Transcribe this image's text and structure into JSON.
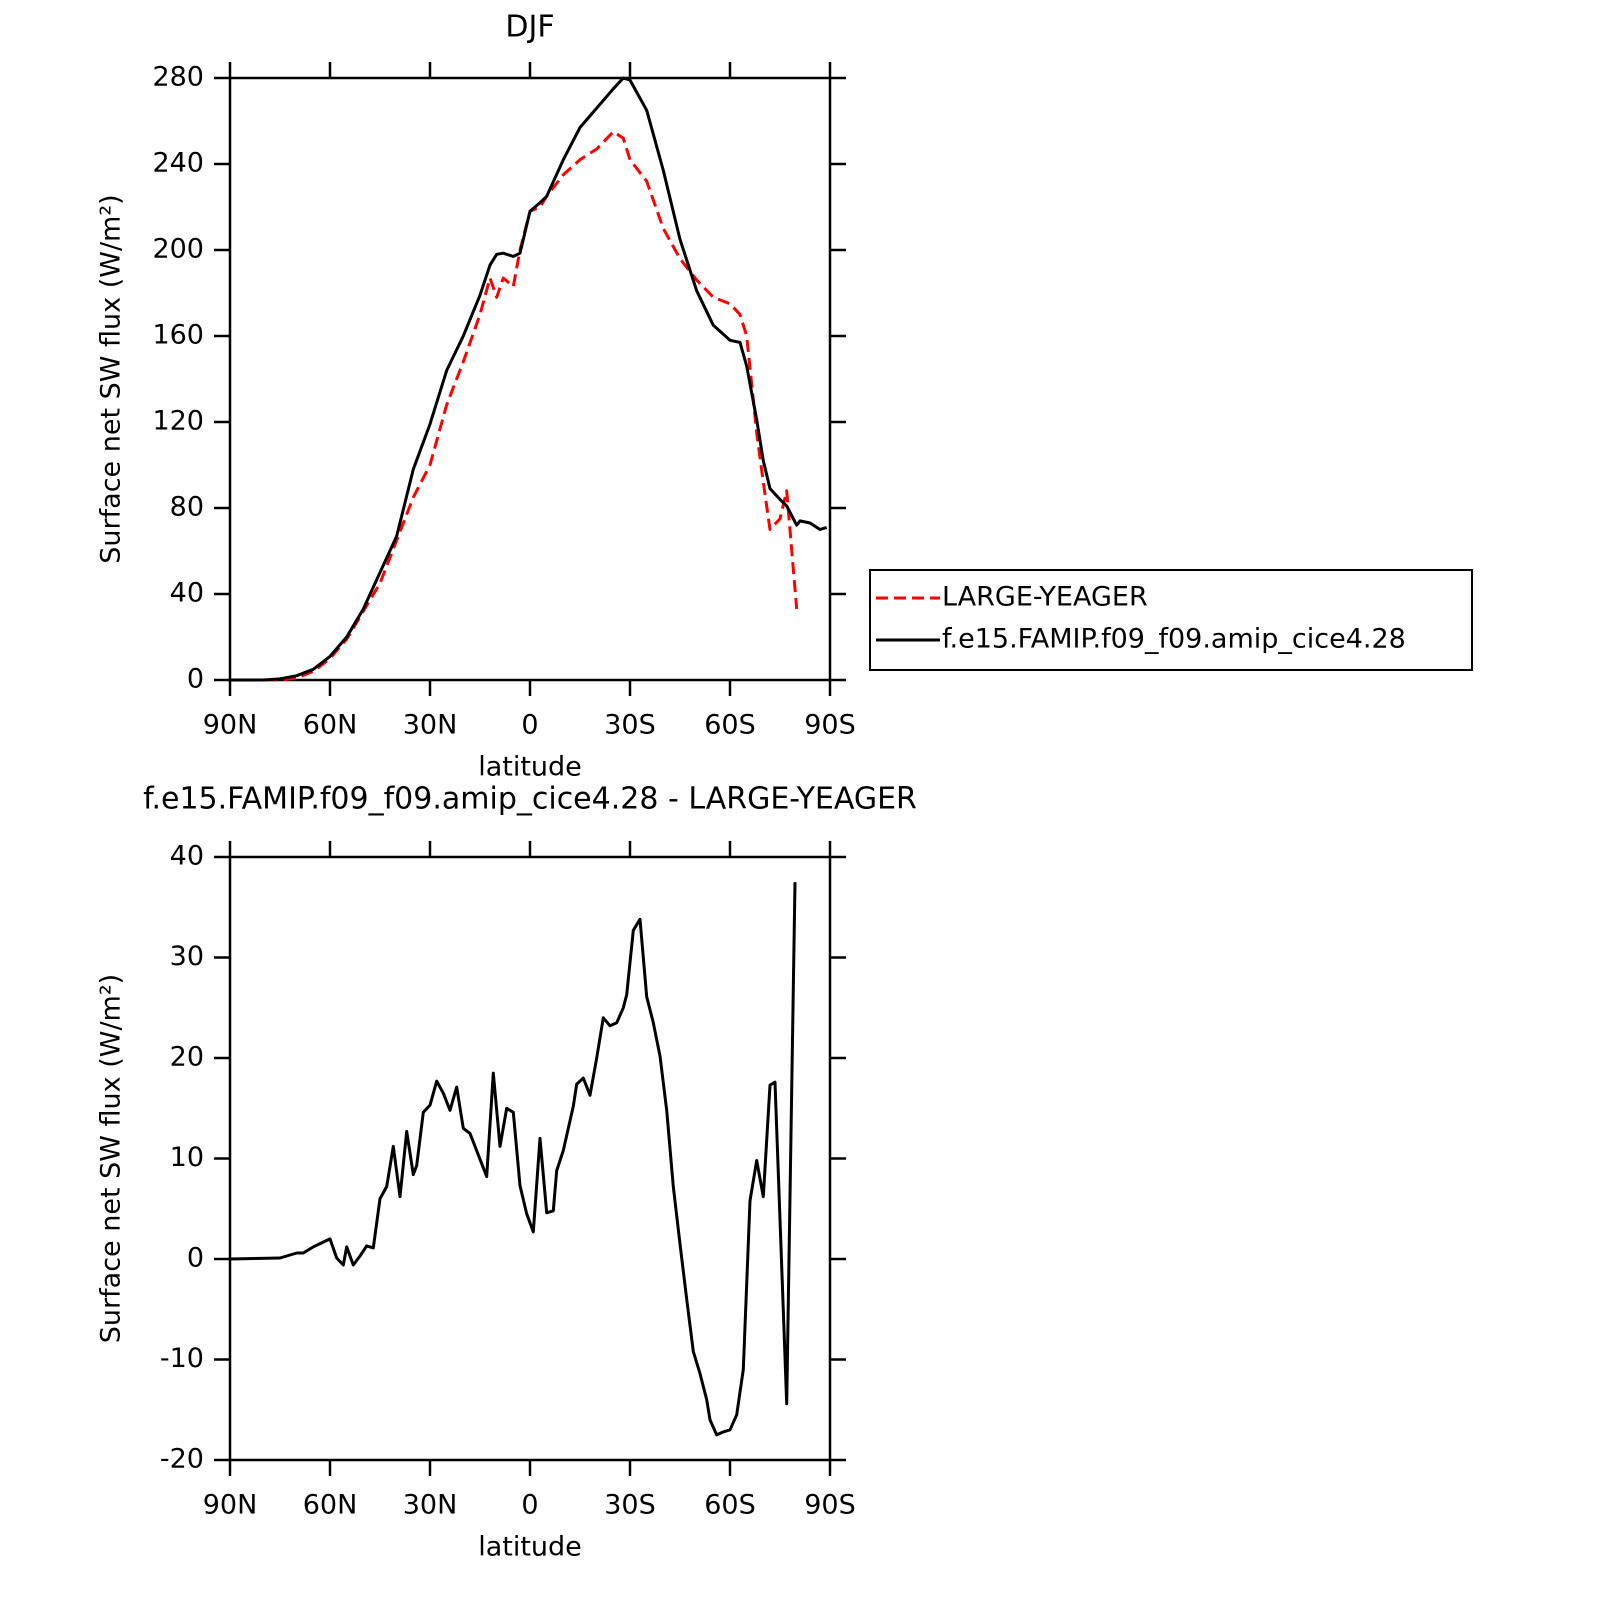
{
  "chart_data": [
    {
      "type": "line",
      "title": "DJF",
      "x_label": "latitude",
      "y_label": "Surface net SW flux (W/m²)",
      "x": [
        90,
        85,
        80,
        75,
        70,
        65,
        60,
        55,
        50,
        45,
        40,
        35,
        30,
        25,
        20,
        15,
        12,
        10,
        8,
        5,
        3,
        0,
        -3,
        -5,
        -10,
        -15,
        -20,
        -25,
        -28,
        -30,
        -35,
        -40,
        -45,
        -50,
        -55,
        -60,
        -63,
        -65,
        -68,
        -70,
        -72,
        -75,
        -77,
        -80,
        -81,
        -84,
        -87,
        -89
      ],
      "series": [
        {
          "name": "LARGE-YEAGER",
          "color": "#ff0000",
          "style": "dashed",
          "values": [
            0,
            0,
            0,
            0,
            1,
            4,
            10,
            19,
            32,
            45,
            65,
            85,
            100,
            128,
            148,
            170,
            187,
            178,
            187,
            183,
            200,
            218,
            220,
            225,
            235,
            242,
            247,
            255,
            252,
            242,
            232,
            210,
            196,
            186,
            178,
            175,
            170,
            160,
            115,
            92,
            70,
            75,
            88,
            33,
            null,
            null,
            null,
            null
          ]
        },
        {
          "name": "f.e15.FAMIP.f09_f09.amip_cice4.28",
          "color": "#000000",
          "style": "solid",
          "values": [
            0,
            0,
            0,
            0.5,
            2,
            5,
            11,
            20,
            33,
            50,
            67,
            98,
            119,
            144,
            160,
            179,
            193,
            198,
            198.5,
            197,
            198.5,
            218,
            222,
            225,
            242,
            257,
            266,
            275,
            280,
            279,
            265,
            237,
            205,
            181,
            165,
            158,
            157,
            146,
            121,
            102,
            89,
            84,
            81,
            72,
            74,
            73,
            70,
            71
          ]
        }
      ],
      "xlim": [
        90,
        -90
      ],
      "xticks": [
        {
          "value": 90,
          "label": "90N"
        },
        {
          "value": 60,
          "label": "60N"
        },
        {
          "value": 30,
          "label": "30N"
        },
        0,
        {
          "value": -30,
          "label": "30S"
        },
        {
          "value": -60,
          "label": "60S"
        },
        {
          "value": -90,
          "label": "90S"
        }
      ],
      "ylim": [
        0,
        280
      ],
      "yticks": [
        0,
        40,
        80,
        120,
        160,
        200,
        240,
        280
      ],
      "legend": "right"
    },
    {
      "type": "line",
      "title": "f.e15.FAMIP.f09_f09.amip_cice4.28 - LARGE-YEAGER",
      "x_label": "latitude",
      "y_label": "Surface net SW flux (W/m²)",
      "x": [
        90,
        75,
        70,
        68,
        65,
        60,
        58,
        56,
        55,
        53,
        51,
        49,
        47,
        45,
        43,
        41,
        39,
        37,
        35,
        34,
        32,
        30,
        28,
        26,
        24,
        22,
        20,
        18,
        13,
        11,
        9,
        7,
        5,
        3,
        1,
        -1,
        -3,
        -5,
        -7,
        -8,
        -10,
        -13,
        -14,
        -16,
        -18,
        -20,
        -22,
        -24,
        -26,
        -28,
        -29,
        -31,
        -33,
        -35,
        -37,
        -39,
        -41,
        -43,
        -45,
        -47,
        -49,
        -51,
        -53,
        -54,
        -56,
        -58,
        -60,
        -62,
        -64,
        -66,
        -68,
        -70,
        -72,
        -73.5,
        -77,
        -79.5
      ],
      "series": [
        {
          "name": "f.e15.FAMIP.f09_f09.amip_cice4.28 - LARGE-YEAGER",
          "color": "#000000",
          "style": "solid",
          "values": [
            0,
            0.1,
            0.6,
            0.6,
            1.2,
            2,
            0.1,
            -0.6,
            1.2,
            -0.6,
            0.3,
            1.3,
            1.1,
            6,
            7.2,
            11.2,
            6.2,
            12.7,
            8.4,
            9.3,
            14.6,
            15.3,
            17.7,
            16.5,
            14.8,
            17.1,
            13,
            12.5,
            8.2,
            18.5,
            11.2,
            15,
            14.6,
            7.3,
            4.5,
            2.7,
            12,
            4.6,
            4.8,
            8.8,
            10.8,
            15.2,
            17.4,
            18,
            16.3,
            20,
            24,
            23.2,
            23.5,
            25,
            26.3,
            32.7,
            33.8,
            26.1,
            23.5,
            20.2,
            14.8,
            7.2,
            1.5,
            -4,
            -9.2,
            -11.4,
            -14,
            -16,
            -17.5,
            -17.2,
            -17,
            -15.5,
            -11,
            5.8,
            9.8,
            6.2,
            17.3,
            17.6,
            -14.4,
            37.5
          ]
        }
      ],
      "xlim": [
        90,
        -90
      ],
      "xticks": [
        {
          "value": 90,
          "label": "90N"
        },
        {
          "value": 60,
          "label": "60N"
        },
        {
          "value": 30,
          "label": "30N"
        },
        0,
        {
          "value": -30,
          "label": "30S"
        },
        {
          "value": -60,
          "label": "60S"
        },
        {
          "value": -90,
          "label": "90S"
        }
      ],
      "ylim": [
        -20,
        40
      ],
      "yticks": [
        -20,
        -10,
        0,
        10,
        20,
        30,
        40
      ]
    }
  ]
}
